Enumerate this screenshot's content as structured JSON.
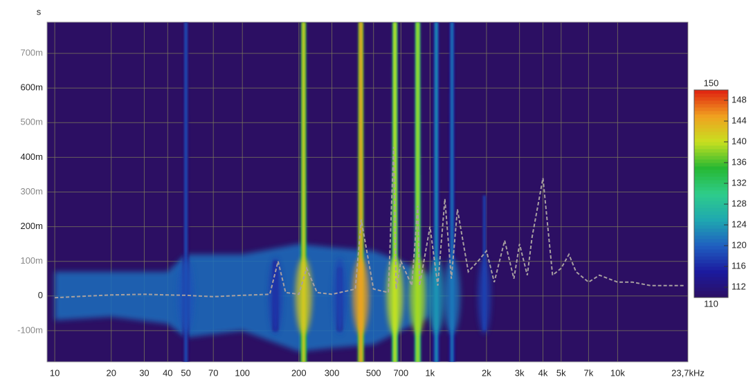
{
  "chart_data": {
    "type": "spectrogram",
    "y_label": "s",
    "xscale": "log",
    "xlim": [
      9.1,
      23700
    ],
    "xticks": [
      10,
      20,
      30,
      40,
      50,
      70,
      100,
      200,
      300,
      500,
      700,
      {
        "value": 1000,
        "label": "1k"
      },
      {
        "value": 2000,
        "label": "2k"
      },
      {
        "value": 3000,
        "label": "3k"
      },
      {
        "value": 4000,
        "label": "4k"
      },
      {
        "value": 5000,
        "label": "5k"
      },
      {
        "value": 7000,
        "label": "7k"
      },
      {
        "value": 10000,
        "label": "10k"
      },
      {
        "value": 23700,
        "label": "23,7kHz"
      }
    ],
    "ylim": [
      -0.19,
      0.79
    ],
    "yticks": [
      {
        "value": -0.1,
        "label": "-100m"
      },
      0,
      {
        "value": 0.1,
        "label": "100m"
      },
      {
        "value": 0.2,
        "label": "200m"
      },
      {
        "value": 0.3,
        "label": "300m"
      },
      {
        "value": 0.4,
        "label": "400m"
      },
      {
        "value": 0.5,
        "label": "500m"
      },
      {
        "value": 0.6,
        "label": "600m"
      },
      {
        "value": 0.7,
        "label": "700m"
      }
    ],
    "grid": true,
    "background": "#2c0f63",
    "zlim": [
      110,
      150
    ],
    "zticks": [
      110,
      112,
      116,
      120,
      124,
      128,
      132,
      136,
      140,
      144,
      148,
      150
    ],
    "colormap": [
      "#2c0f63",
      "#1b1a9e",
      "#1f5fc0",
      "#1fa8b0",
      "#2ecc8a",
      "#27b832",
      "#c8e020",
      "#f0a020",
      "#e02010"
    ],
    "noise_floor": {
      "level": 121,
      "x": [
        10,
        20,
        40,
        50,
        100,
        200,
        300,
        500,
        700,
        1000
      ],
      "upper": [
        0.07,
        0.07,
        0.07,
        0.12,
        0.12,
        0.15,
        0.14,
        0.13,
        0.1,
        0.06
      ],
      "lower": [
        -0.07,
        -0.06,
        -0.08,
        -0.12,
        -0.1,
        -0.16,
        -0.15,
        -0.14,
        -0.1,
        -0.06
      ]
    },
    "peaks": {
      "x": [
        50,
        150,
        212,
        330,
        428,
        650,
        860,
        1080,
        1310,
        1950
      ],
      "decay": [
        0.79,
        0.1,
        0.79,
        0.08,
        0.79,
        0.79,
        0.79,
        0.79,
        0.79,
        0.29
      ],
      "level": [
        119,
        117,
        142,
        118,
        145,
        140,
        139,
        124,
        122,
        118
      ]
    },
    "trace": {
      "color": "#a8a0a0",
      "x": [
        10,
        15,
        20,
        30,
        40,
        50,
        70,
        100,
        140,
        155,
        170,
        200,
        220,
        250,
        300,
        400,
        430,
        500,
        600,
        640,
        660,
        700,
        800,
        860,
        880,
        1000,
        1100,
        1200,
        1300,
        1400,
        1600,
        1800,
        2000,
        2200,
        2500,
        2800,
        3000,
        3300,
        3500,
        4000,
        4500,
        5000,
        5500,
        6000,
        7000,
        8000,
        10000,
        12000,
        15000,
        20000,
        23000
      ],
      "values": [
        -0.005,
        0,
        0.003,
        0.005,
        0.003,
        0.002,
        -0.002,
        0.002,
        0.005,
        0.1,
        0.01,
        0.005,
        0.08,
        0.01,
        0.005,
        0.02,
        0.22,
        0.02,
        0.01,
        0.43,
        0.02,
        0.1,
        0.03,
        0.26,
        0.03,
        0.2,
        0.03,
        0.28,
        0.05,
        0.25,
        0.07,
        0.1,
        0.13,
        0.04,
        0.16,
        0.05,
        0.15,
        0.06,
        0.17,
        0.34,
        0.06,
        0.08,
        0.12,
        0.07,
        0.04,
        0.06,
        0.04,
        0.04,
        0.03,
        0.03,
        0.03
      ]
    }
  }
}
